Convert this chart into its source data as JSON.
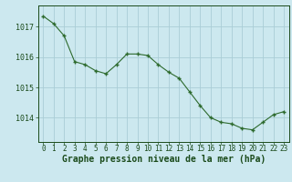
{
  "x": [
    0,
    1,
    2,
    3,
    4,
    5,
    6,
    7,
    8,
    9,
    10,
    11,
    12,
    13,
    14,
    15,
    16,
    17,
    18,
    19,
    20,
    21,
    22,
    23
  ],
  "y": [
    1017.35,
    1017.1,
    1016.7,
    1015.85,
    1015.75,
    1015.55,
    1015.45,
    1015.75,
    1016.1,
    1016.1,
    1016.05,
    1015.75,
    1015.5,
    1015.3,
    1014.85,
    1014.4,
    1014.0,
    1013.85,
    1013.8,
    1013.65,
    1013.6,
    1013.85,
    1014.1,
    1014.2
  ],
  "line_color": "#2d6a2d",
  "marker": "+",
  "marker_color": "#2d6a2d",
  "bg_color": "#cce8ef",
  "grid_color": "#aacdd6",
  "xlabel": "Graphe pression niveau de la mer (hPa)",
  "xlabel_color": "#1a4a1a",
  "xlabel_fontsize": 7,
  "tick_color": "#1a4a1a",
  "tick_fontsize": 5.5,
  "ytick_fontsize": 6.0,
  "yticks": [
    1014,
    1015,
    1016,
    1017
  ],
  "ylim": [
    1013.2,
    1017.7
  ],
  "xlim": [
    -0.5,
    23.5
  ]
}
